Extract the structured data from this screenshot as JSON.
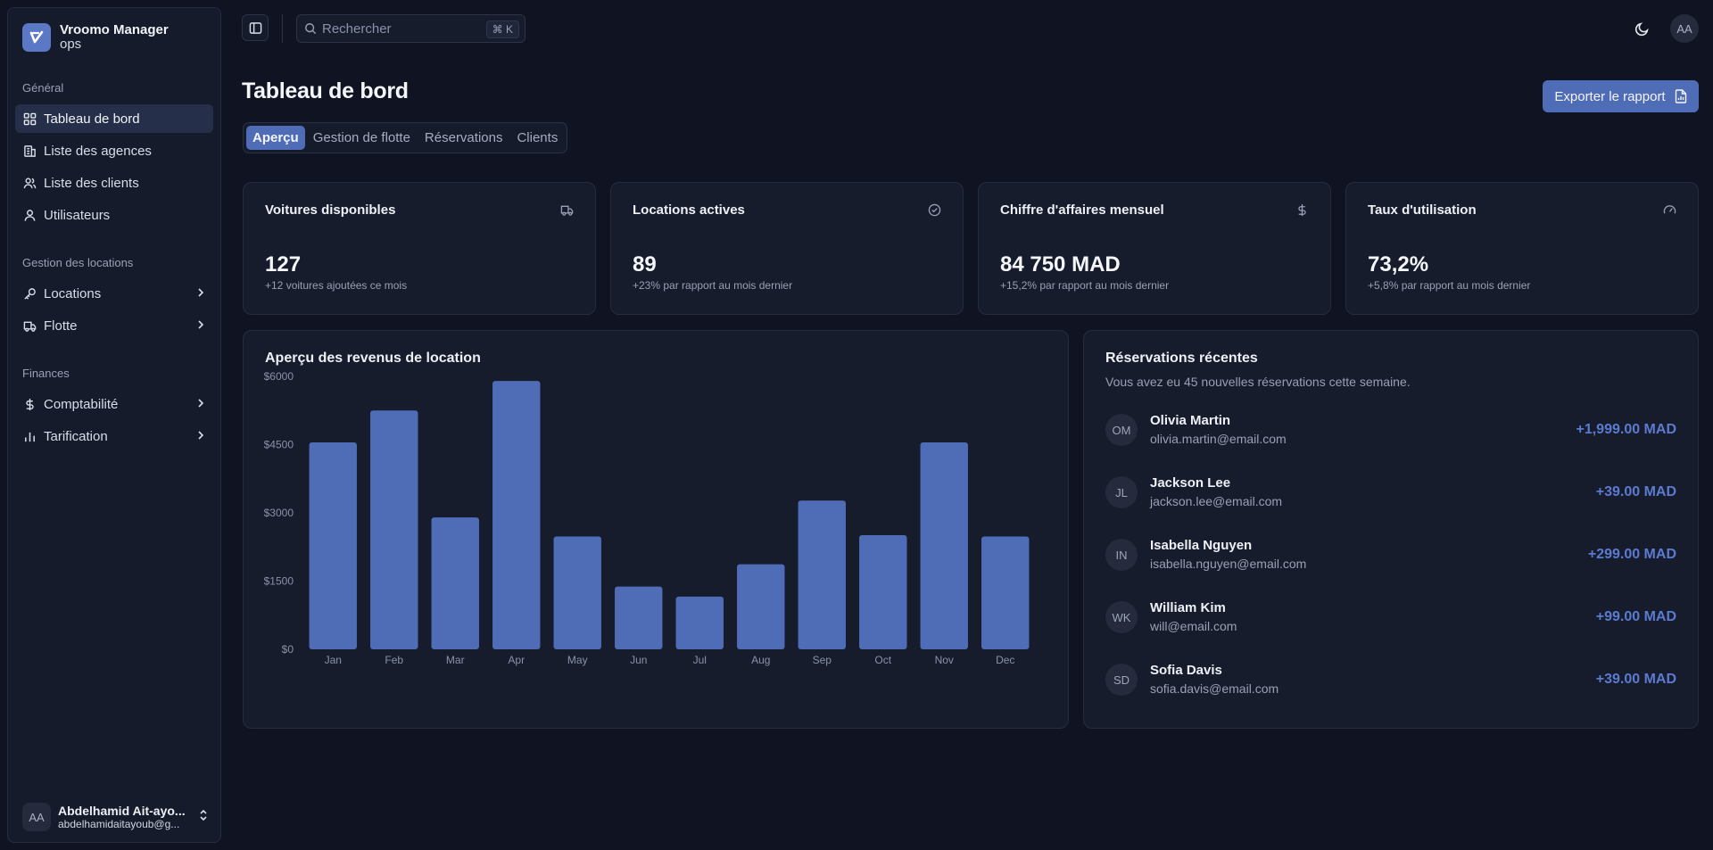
{
  "app": {
    "title": "Vroomo Manager",
    "subtitle": "ops"
  },
  "sidebar": {
    "groups": [
      {
        "label": "Général",
        "items": [
          {
            "label": "Tableau de bord",
            "icon": "dashboard-icon",
            "active": true
          },
          {
            "label": "Liste des agences",
            "icon": "building-icon"
          },
          {
            "label": "Liste des clients",
            "icon": "users-icon"
          },
          {
            "label": "Utilisateurs",
            "icon": "user-icon"
          }
        ]
      },
      {
        "label": "Gestion des locations",
        "items": [
          {
            "label": "Locations",
            "icon": "key-icon",
            "expandable": true
          },
          {
            "label": "Flotte",
            "icon": "truck-icon",
            "expandable": true
          }
        ]
      },
      {
        "label": "Finances",
        "items": [
          {
            "label": "Comptabilité",
            "icon": "dollar-icon",
            "expandable": true
          },
          {
            "label": "Tarification",
            "icon": "bar-chart-icon",
            "expandable": true
          }
        ]
      }
    ],
    "user": {
      "initials": "AA",
      "name": "Abdelhamid Ait-ayo...",
      "email": "abdelhamidaitayoub@g..."
    }
  },
  "topbar": {
    "search_placeholder": "Rechercher",
    "shortcut": "⌘ K",
    "avatar": "AA"
  },
  "page": {
    "title": "Tableau de bord",
    "export_label": "Exporter le rapport",
    "tabs": [
      "Aperçu",
      "Gestion de flotte",
      "Réservations",
      "Clients"
    ],
    "active_tab": "Aperçu"
  },
  "stats": [
    {
      "title": "Voitures disponibles",
      "icon": "truck-icon",
      "value": "127",
      "sub": "+12 voitures ajoutées ce mois"
    },
    {
      "title": "Locations actives",
      "icon": "check-circle-icon",
      "value": "89",
      "sub": "+23% par rapport au mois dernier"
    },
    {
      "title": "Chiffre d'affaires mensuel",
      "icon": "dollar-icon",
      "value": "84 750 MAD",
      "sub": "+15,2% par rapport au mois dernier"
    },
    {
      "title": "Taux d'utilisation",
      "icon": "gauge-icon",
      "value": "73,2%",
      "sub": "+5,8% par rapport au mois dernier"
    }
  ],
  "revenue_panel": {
    "title": "Aperçu des revenus de location"
  },
  "chart_data": {
    "type": "bar",
    "title": "Aperçu des revenus de location",
    "categories": [
      "Jan",
      "Feb",
      "Mar",
      "Apr",
      "May",
      "Jun",
      "Jul",
      "Aug",
      "Sep",
      "Oct",
      "Nov",
      "Dec"
    ],
    "values": [
      4550,
      5250,
      2900,
      5900,
      2480,
      1380,
      1160,
      1870,
      3270,
      2510,
      4550,
      2480
    ],
    "yticks": [
      "$6000",
      "$4500",
      "$3000",
      "$1500",
      "$0"
    ],
    "ytick_values": [
      6000,
      4500,
      3000,
      1500,
      0
    ],
    "ylim": [
      0,
      6000
    ],
    "xlabel": "",
    "ylabel": "",
    "bar_color": "#4f6cb7",
    "grid": false
  },
  "reservations": {
    "title": "Réservations récentes",
    "subtitle": "Vous avez eu 45 nouvelles réservations cette semaine.",
    "items": [
      {
        "initials": "OM",
        "name": "Olivia Martin",
        "email": "olivia.martin@email.com",
        "amount": "+1,999.00 MAD"
      },
      {
        "initials": "JL",
        "name": "Jackson Lee",
        "email": "jackson.lee@email.com",
        "amount": "+39.00 MAD"
      },
      {
        "initials": "IN",
        "name": "Isabella Nguyen",
        "email": "isabella.nguyen@email.com",
        "amount": "+299.00 MAD"
      },
      {
        "initials": "WK",
        "name": "William Kim",
        "email": "will@email.com",
        "amount": "+99.00 MAD"
      },
      {
        "initials": "SD",
        "name": "Sofia Davis",
        "email": "sofia.davis@email.com",
        "amount": "+39.00 MAD"
      }
    ]
  },
  "colors": {
    "accent": "#4f6cb7",
    "amount": "#5b7bd0",
    "background": "#0f1322",
    "card": "#171c2d"
  }
}
